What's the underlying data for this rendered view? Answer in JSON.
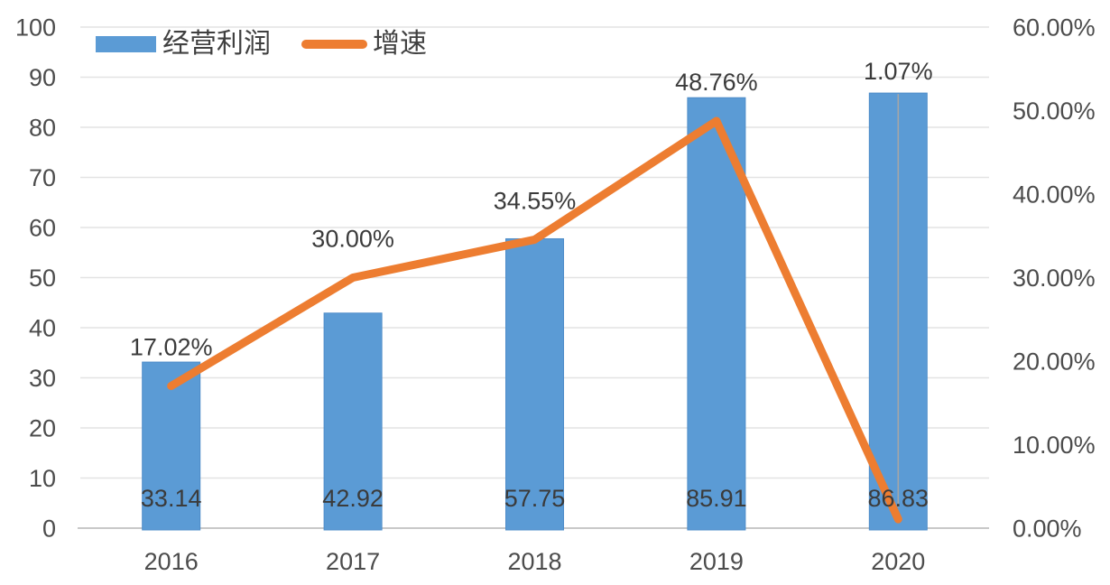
{
  "chart_data": {
    "type": "combo-bar-line",
    "title": "",
    "categories": [
      "2016",
      "2017",
      "2018",
      "2019",
      "2020"
    ],
    "series": [
      {
        "name": "经营利润",
        "type": "bar",
        "axis": "left",
        "values": [
          33.14,
          42.92,
          57.75,
          85.91,
          86.83
        ],
        "labels": [
          "33.14",
          "42.92",
          "57.75",
          "85.91",
          "86.83"
        ],
        "color": "#5B9BD5"
      },
      {
        "name": "增速",
        "type": "line",
        "axis": "right",
        "values": [
          17.02,
          30.0,
          34.55,
          48.76,
          1.07
        ],
        "labels": [
          "17.02%",
          "30.00%",
          "34.55%",
          "48.76%",
          "1.07%"
        ],
        "color": "#ED7D31"
      }
    ],
    "left_axis": {
      "min": 0,
      "max": 100,
      "step": 10,
      "tick_labels": [
        "0",
        "10",
        "20",
        "30",
        "40",
        "50",
        "60",
        "70",
        "80",
        "90",
        "100"
      ]
    },
    "right_axis": {
      "min": 0,
      "max": 60,
      "tick_labels": [
        "0.00%",
        "10.00%",
        "20.00%",
        "30.00%",
        "40.00%",
        "50.00%",
        "60.00%"
      ]
    },
    "grid": true,
    "legend_position": "top-left",
    "last_line_label_placement": "above-bar-with-leader-line",
    "colors": {
      "bar": "#5B9BD5",
      "line": "#ED7D31",
      "gridline": "#E3E3E3",
      "axis_line": "#C8C8C8",
      "axis_text": "#4C4C4C",
      "data_label_text": "#3B3B3B",
      "leader_line": "#A6A6A6"
    }
  },
  "legend": {
    "items": [
      {
        "label": "经营利润"
      },
      {
        "label": "增速"
      }
    ]
  }
}
